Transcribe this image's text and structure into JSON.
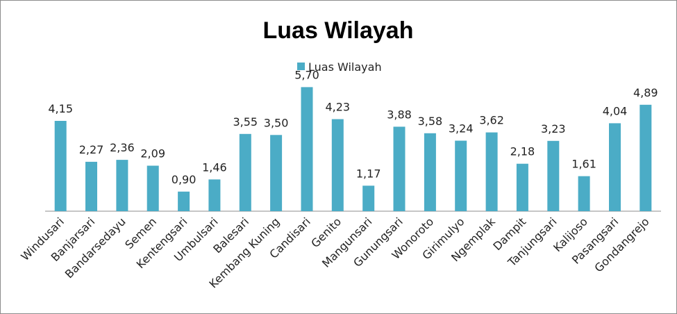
{
  "chart_data": {
    "type": "bar",
    "title": "Luas Wilayah",
    "legend": "Luas Wilayah",
    "legend_position": "top",
    "categories": [
      "Windusari",
      "Banjarsari",
      "Bandarsedayu",
      "Semen",
      "Kentengsari",
      "Umbulsari",
      "Balesari",
      "Kembang Kuning",
      "Candisari",
      "Genito",
      "Mangunsari",
      "Gunungsari",
      "Wonoroto",
      "Girimulyo",
      "Ngemplak",
      "Dampit",
      "Tanjungsari",
      "Kalijoso",
      "Pasangsari",
      "Gondangrejo"
    ],
    "values": [
      4.15,
      2.27,
      2.36,
      2.09,
      0.9,
      1.46,
      3.55,
      3.5,
      5.7,
      4.23,
      1.17,
      3.88,
      3.58,
      3.24,
      3.62,
      2.18,
      3.23,
      1.61,
      4.04,
      4.89
    ],
    "data_labels": [
      "4,15",
      "2,27",
      "2,36",
      "2,09",
      "0,90",
      "1,46",
      "3,55",
      "3,50",
      "5,70",
      "4,23",
      "1,17",
      "3,88",
      "3,58",
      "3,24",
      "3,62",
      "2,18",
      "3,23",
      "1,61",
      "4,04",
      "4,89"
    ],
    "ylim": [
      0,
      6
    ],
    "grid": false,
    "bar_color": "#4bacc6"
  }
}
